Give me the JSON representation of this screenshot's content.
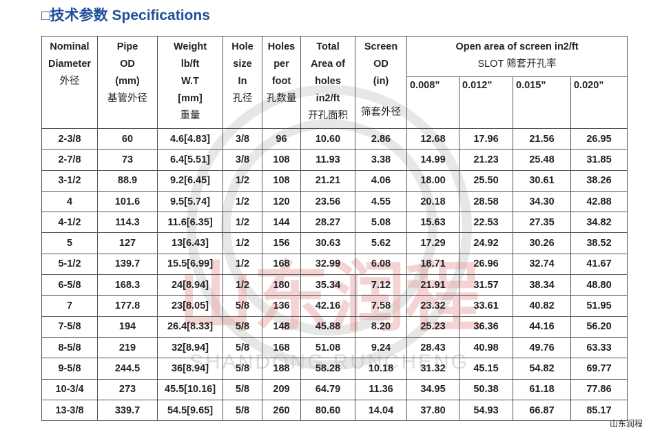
{
  "header": {
    "title": "□技术参数 Specifications"
  },
  "table": {
    "columns": [
      [
        "Nominal",
        "Diameter",
        "外径"
      ],
      [
        "Pipe",
        "OD",
        "(mm)",
        "基管外径"
      ],
      [
        "Weight",
        "lb/ft",
        "W.T",
        "[mm]",
        "重量"
      ],
      [
        "Hole",
        "size",
        "In",
        "孔径"
      ],
      [
        "Holes",
        "per",
        "foot",
        "孔数量"
      ],
      [
        "Total",
        "Area of",
        "holes",
        "in2/ft",
        "开孔面积"
      ],
      [
        "Screen",
        "OD",
        "(in)",
        "筛套外径"
      ]
    ],
    "group": [
      "Open area of screen in2/ft",
      "SLOT 筛套开孔率"
    ],
    "slots": [
      "0.008”",
      "0.012”",
      "0.015”",
      "0.020”"
    ],
    "rows": [
      [
        "2-3/8",
        "60",
        "4.6[4.83]",
        "3/8",
        "96",
        "10.60",
        "2.86",
        "12.68",
        "17.96",
        "21.56",
        "26.95"
      ],
      [
        "2-7/8",
        "73",
        "6.4[5.51]",
        "3/8",
        "108",
        "11.93",
        "3.38",
        "14.99",
        "21.23",
        "25.48",
        "31.85"
      ],
      [
        "3-1/2",
        "88.9",
        "9.2[6.45]",
        "1/2",
        "108",
        "21.21",
        "4.06",
        "18.00",
        "25.50",
        "30.61",
        "38.26"
      ],
      [
        "4",
        "101.6",
        "9.5[5.74]",
        "1/2",
        "120",
        "23.56",
        "4.55",
        "20.18",
        "28.58",
        "34.30",
        "42.88"
      ],
      [
        "4-1/2",
        "114.3",
        "11.6[6.35]",
        "1/2",
        "144",
        "28.27",
        "5.08",
        "15.63",
        "22.53",
        "27.35",
        "34.82"
      ],
      [
        "5",
        "127",
        "13[6.43]",
        "1/2",
        "156",
        "30.63",
        "5.62",
        "17.29",
        "24.92",
        "30.26",
        "38.52"
      ],
      [
        "5-1/2",
        "139.7",
        "15.5[6.99]",
        "1/2",
        "168",
        "32.99",
        "6.08",
        "18.71",
        "26.96",
        "32.74",
        "41.67"
      ],
      [
        "6-5/8",
        "168.3",
        "24[8.94]",
        "1/2",
        "180",
        "35.34",
        "7.12",
        "21.91",
        "31.57",
        "38.34",
        "48.80"
      ],
      [
        "7",
        "177.8",
        "23[8.05]",
        "5/8",
        "136",
        "42.16",
        "7.58",
        "23.32",
        "33.61",
        "40.82",
        "51.95"
      ],
      [
        "7-5/8",
        "194",
        "26.4[8.33]",
        "5/8",
        "148",
        "45.88",
        "8.20",
        "25.23",
        "36.36",
        "44.16",
        "56.20"
      ],
      [
        "8-5/8",
        "219",
        "32[8.94]",
        "5/8",
        "168",
        "51.08",
        "9.24",
        "28.43",
        "40.98",
        "49.76",
        "63.33"
      ],
      [
        "9-5/8",
        "244.5",
        "36[8.94]",
        "5/8",
        "188",
        "58.28",
        "10.18",
        "31.32",
        "45.15",
        "54.82",
        "69.77"
      ],
      [
        "10-3/4",
        "273",
        "45.5[10.16]",
        "5/8",
        "209",
        "64.79",
        "11.36",
        "34.95",
        "50.38",
        "61.18",
        "77.86"
      ],
      [
        "13-3/8",
        "339.7",
        "54.5[9.65]",
        "5/8",
        "260",
        "80.60",
        "14.04",
        "37.80",
        "54.93",
        "66.87",
        "85.17"
      ]
    ]
  },
  "watermark": {
    "title": "山东润程",
    "subtitle": "SHANDONG RUNCHENG"
  },
  "footer": {
    "text": "山东润程"
  }
}
